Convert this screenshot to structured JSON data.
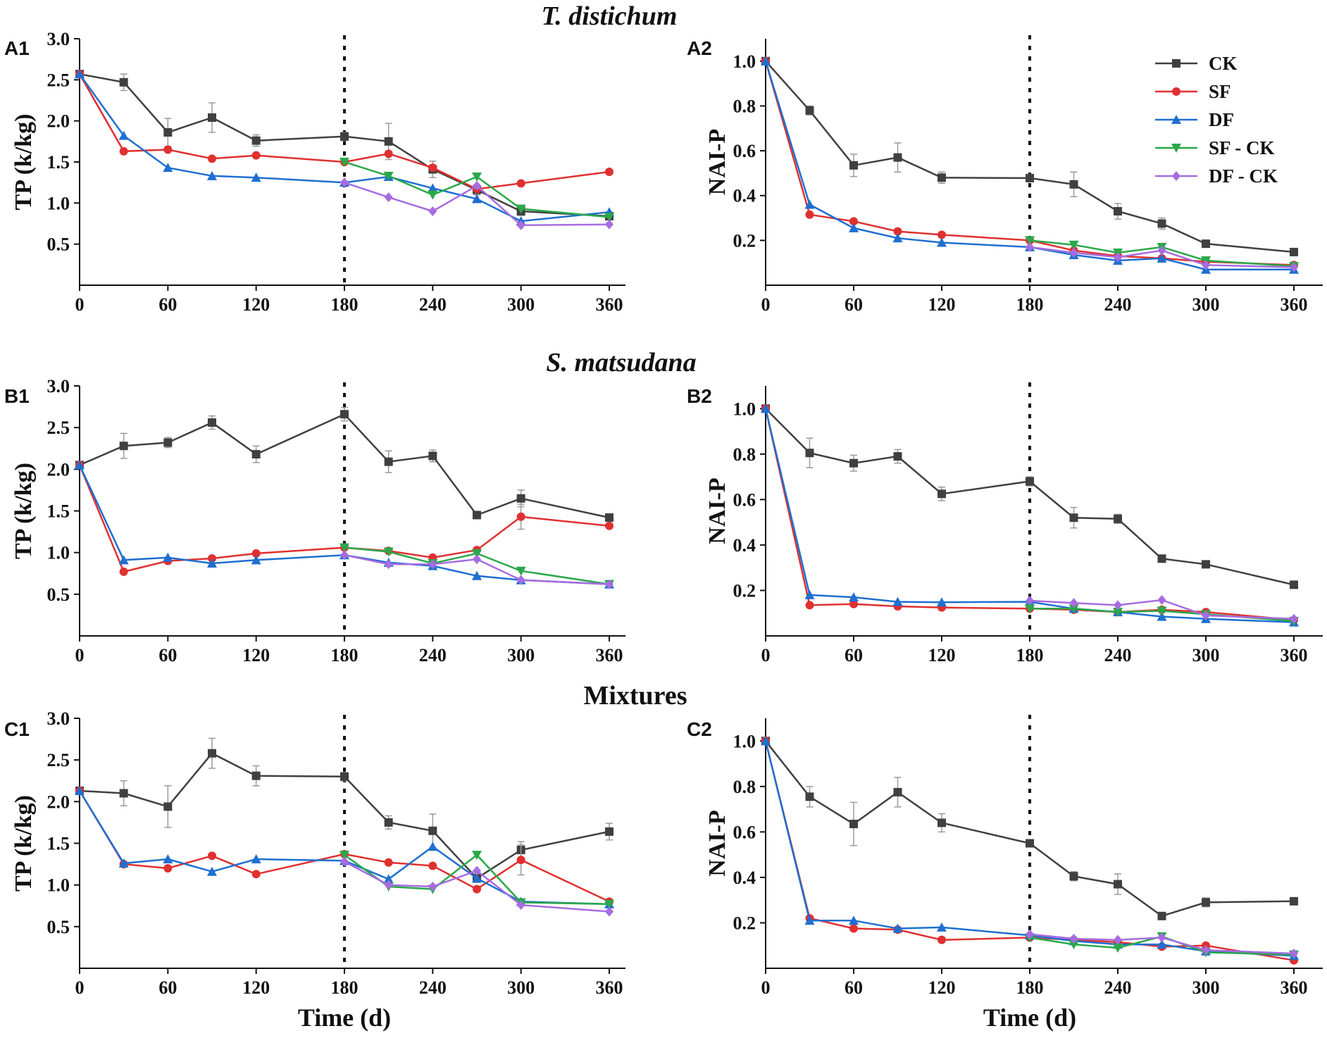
{
  "row_titles": [
    {
      "text": "T. distichum",
      "italic": true
    },
    {
      "text": "S. matsudana",
      "italic": true
    },
    {
      "text": "Mixtures",
      "italic": false
    }
  ],
  "x_axis_label": "Time (d)",
  "legend": [
    {
      "name": "CK",
      "color": "#404040",
      "marker": "square"
    },
    {
      "name": "SF",
      "color": "#e03030",
      "marker": "circle"
    },
    {
      "name": "DF",
      "color": "#1f6fd1",
      "marker": "triangle"
    },
    {
      "name": "SF - CK",
      "color": "#2aa84a",
      "marker": "triangle-down"
    },
    {
      "name": "DF - CK",
      "color": "#a66ce0",
      "marker": "diamond"
    }
  ],
  "chart_data": [
    {
      "id": "A1",
      "type": "line",
      "ylabel": "TP (k/kg)",
      "xlabel": "",
      "xlim": [
        0,
        360
      ],
      "xticks": [
        0,
        60,
        120,
        180,
        240,
        300,
        360
      ],
      "ylim": [
        0,
        3.0
      ],
      "yticks": [
        0.5,
        1.0,
        1.5,
        2.0,
        2.5,
        3.0
      ],
      "ytick_labels": [
        "0.5",
        "1.0",
        "1.5",
        "2.0",
        "2.5",
        "3.0"
      ],
      "vline_x": 180,
      "series": [
        {
          "name": "CK",
          "x": [
            0,
            30,
            60,
            90,
            120,
            180,
            210,
            240,
            270,
            300,
            360
          ],
          "values": [
            2.57,
            2.47,
            1.86,
            2.04,
            1.76,
            1.81,
            1.75,
            1.41,
            1.16,
            0.9,
            0.84
          ],
          "err": [
            0,
            0.1,
            0.17,
            0.18,
            0.07,
            0.05,
            0.22,
            0.1,
            0.06,
            0.05,
            0.04
          ]
        },
        {
          "name": "SF",
          "x": [
            0,
            30,
            60,
            90,
            120,
            180,
            210,
            240,
            270,
            300,
            360
          ],
          "values": [
            2.57,
            1.63,
            1.65,
            1.54,
            1.58,
            1.5,
            1.6,
            1.43,
            1.17,
            1.24,
            1.38
          ]
        },
        {
          "name": "DF",
          "x": [
            0,
            30,
            60,
            90,
            120,
            180,
            210,
            240,
            270,
            300,
            360
          ],
          "values": [
            2.57,
            1.82,
            1.43,
            1.33,
            1.31,
            1.25,
            1.32,
            1.18,
            1.05,
            0.78,
            0.89
          ]
        },
        {
          "name": "SF - CK",
          "x": [
            180,
            210,
            240,
            270,
            300,
            360
          ],
          "values": [
            1.5,
            1.33,
            1.1,
            1.32,
            0.93,
            0.83
          ]
        },
        {
          "name": "DF - CK",
          "x": [
            180,
            210,
            240,
            270,
            300,
            360
          ],
          "values": [
            1.25,
            1.07,
            0.9,
            1.21,
            0.73,
            0.74
          ]
        }
      ]
    },
    {
      "id": "A2",
      "type": "line",
      "ylabel": "NAI-P",
      "xlabel": "",
      "xlim": [
        0,
        360
      ],
      "xticks": [
        0,
        60,
        120,
        180,
        240,
        300,
        360
      ],
      "ylim": [
        0,
        1.1
      ],
      "yticks": [
        0.2,
        0.4,
        0.6,
        0.8,
        1.0
      ],
      "ytick_labels": [
        "0.2",
        "0.4",
        "0.6",
        "0.8",
        "1.0"
      ],
      "vline_x": 180,
      "legend": "top-right",
      "series": [
        {
          "name": "CK",
          "x": [
            0,
            30,
            60,
            90,
            120,
            180,
            210,
            240,
            270,
            300,
            360
          ],
          "values": [
            1.0,
            0.78,
            0.535,
            0.57,
            0.48,
            0.478,
            0.45,
            0.33,
            0.275,
            0.185,
            0.148
          ],
          "err": [
            0,
            0.02,
            0.05,
            0.065,
            0.025,
            0.01,
            0.055,
            0.035,
            0.025,
            0.01,
            0.008
          ]
        },
        {
          "name": "SF",
          "x": [
            0,
            30,
            60,
            90,
            120,
            180,
            210,
            240,
            270,
            300,
            360
          ],
          "values": [
            1.0,
            0.315,
            0.285,
            0.24,
            0.225,
            0.2,
            0.155,
            0.13,
            0.12,
            0.105,
            0.09
          ]
        },
        {
          "name": "DF",
          "x": [
            0,
            30,
            60,
            90,
            120,
            180,
            210,
            240,
            270,
            300,
            360
          ],
          "values": [
            1.0,
            0.36,
            0.255,
            0.21,
            0.19,
            0.17,
            0.135,
            0.11,
            0.12,
            0.07,
            0.07
          ]
        },
        {
          "name": "SF - CK",
          "x": [
            180,
            210,
            240,
            270,
            300,
            360
          ],
          "values": [
            0.2,
            0.18,
            0.145,
            0.17,
            0.11,
            0.085
          ]
        },
        {
          "name": "DF - CK",
          "x": [
            180,
            210,
            240,
            270,
            300,
            360
          ],
          "values": [
            0.17,
            0.145,
            0.125,
            0.155,
            0.09,
            0.08
          ]
        }
      ]
    },
    {
      "id": "B1",
      "type": "line",
      "ylabel": "TP (k/kg)",
      "xlabel": "",
      "xlim": [
        0,
        360
      ],
      "xticks": [
        0,
        60,
        120,
        180,
        240,
        300,
        360
      ],
      "ylim": [
        0,
        3.0
      ],
      "yticks": [
        0.5,
        1.0,
        1.5,
        2.0,
        2.5,
        3.0
      ],
      "ytick_labels": [
        "0.5",
        "1.0",
        "1.5",
        "2.0",
        "2.5",
        "3.0"
      ],
      "vline_x": 180,
      "series": [
        {
          "name": "CK",
          "x": [
            0,
            30,
            60,
            90,
            120,
            180,
            210,
            240,
            270,
            300,
            360
          ],
          "values": [
            2.05,
            2.28,
            2.32,
            2.56,
            2.18,
            2.66,
            2.09,
            2.16,
            1.45,
            1.65,
            1.42
          ],
          "err": [
            0,
            0.15,
            0.06,
            0.08,
            0.1,
            0.08,
            0.13,
            0.07,
            0.03,
            0.1,
            0.04
          ]
        },
        {
          "name": "SF",
          "x": [
            0,
            30,
            60,
            90,
            120,
            180,
            210,
            240,
            270,
            300,
            360
          ],
          "values": [
            2.05,
            0.77,
            0.9,
            0.93,
            0.99,
            1.06,
            1.02,
            0.94,
            1.03,
            1.43,
            1.32
          ],
          "err": [
            0,
            0,
            0,
            0,
            0,
            0,
            0,
            0,
            0,
            0.15,
            0
          ]
        },
        {
          "name": "DF",
          "x": [
            0,
            30,
            60,
            90,
            120,
            180,
            210,
            240,
            270,
            300,
            360
          ],
          "values": [
            2.05,
            0.91,
            0.94,
            0.87,
            0.91,
            0.97,
            0.88,
            0.84,
            0.72,
            0.67,
            0.62
          ]
        },
        {
          "name": "SF - CK",
          "x": [
            180,
            210,
            240,
            270,
            300,
            360
          ],
          "values": [
            1.06,
            1.01,
            0.87,
            0.99,
            0.78,
            0.62
          ]
        },
        {
          "name": "DF - CK",
          "x": [
            180,
            210,
            240,
            270,
            300,
            360
          ],
          "values": [
            0.97,
            0.86,
            0.86,
            0.92,
            0.67,
            0.62
          ]
        }
      ]
    },
    {
      "id": "B2",
      "type": "line",
      "ylabel": "NAI-P",
      "xlabel": "",
      "xlim": [
        0,
        360
      ],
      "xticks": [
        0,
        60,
        120,
        180,
        240,
        300,
        360
      ],
      "ylim": [
        0,
        1.1
      ],
      "yticks": [
        0.2,
        0.4,
        0.6,
        0.8,
        1.0
      ],
      "ytick_labels": [
        "0.2",
        "0.4",
        "0.6",
        "0.8",
        "1.0"
      ],
      "vline_x": 180,
      "series": [
        {
          "name": "CK",
          "x": [
            0,
            30,
            60,
            90,
            120,
            180,
            210,
            240,
            270,
            300,
            360
          ],
          "values": [
            1.0,
            0.805,
            0.76,
            0.79,
            0.625,
            0.68,
            0.52,
            0.515,
            0.34,
            0.315,
            0.225
          ],
          "err": [
            0,
            0.065,
            0.035,
            0.03,
            0.03,
            0.02,
            0.045,
            0.02,
            0.01,
            0.015,
            0.01
          ]
        },
        {
          "name": "SF",
          "x": [
            0,
            30,
            60,
            90,
            120,
            180,
            210,
            240,
            270,
            300,
            360
          ],
          "values": [
            1.0,
            0.135,
            0.14,
            0.13,
            0.125,
            0.12,
            0.115,
            0.105,
            0.115,
            0.105,
            0.07
          ]
        },
        {
          "name": "DF",
          "x": [
            0,
            30,
            60,
            90,
            120,
            180,
            210,
            240,
            270,
            300,
            360
          ],
          "values": [
            1.0,
            0.18,
            0.17,
            0.15,
            0.148,
            0.15,
            0.12,
            0.105,
            0.085,
            0.075,
            0.06
          ]
        },
        {
          "name": "SF - CK",
          "x": [
            180,
            210,
            240,
            270,
            300,
            360
          ],
          "values": [
            0.12,
            0.12,
            0.105,
            0.11,
            0.095,
            0.065
          ]
        },
        {
          "name": "DF - CK",
          "x": [
            180,
            210,
            240,
            270,
            300,
            360
          ],
          "values": [
            0.155,
            0.145,
            0.135,
            0.158,
            0.09,
            0.075
          ]
        }
      ]
    },
    {
      "id": "C1",
      "type": "line",
      "ylabel": "TP (k/kg)",
      "xlabel": "Time (d)",
      "xlim": [
        0,
        360
      ],
      "xticks": [
        0,
        60,
        120,
        180,
        240,
        300,
        360
      ],
      "ylim": [
        0,
        3.0
      ],
      "yticks": [
        0.5,
        1.0,
        1.5,
        2.0,
        2.5,
        3.0
      ],
      "ytick_labels": [
        "0.5",
        "1.0",
        "1.5",
        "2.0",
        "2.5",
        "3.0"
      ],
      "vline_x": 180,
      "series": [
        {
          "name": "CK",
          "x": [
            0,
            30,
            60,
            90,
            120,
            180,
            210,
            240,
            270,
            300,
            360
          ],
          "values": [
            2.13,
            2.1,
            1.94,
            2.58,
            2.31,
            2.3,
            1.75,
            1.65,
            1.08,
            1.42,
            1.64
          ],
          "err": [
            0,
            0.15,
            0.25,
            0.18,
            0.12,
            0.05,
            0.08,
            0.2,
            0.05,
            0.1,
            0.1
          ]
        },
        {
          "name": "SF",
          "x": [
            0,
            30,
            60,
            90,
            120,
            180,
            210,
            240,
            270,
            300,
            360
          ],
          "values": [
            2.13,
            1.25,
            1.2,
            1.35,
            1.13,
            1.37,
            1.27,
            1.23,
            0.95,
            1.3,
            0.8
          ],
          "err": [
            0,
            0,
            0,
            0,
            0,
            0,
            0,
            0,
            0,
            0.18,
            0
          ]
        },
        {
          "name": "DF",
          "x": [
            0,
            30,
            60,
            90,
            120,
            180,
            210,
            240,
            270,
            300,
            360
          ],
          "values": [
            2.13,
            1.26,
            1.31,
            1.16,
            1.31,
            1.29,
            1.07,
            1.46,
            1.08,
            0.8,
            0.77
          ]
        },
        {
          "name": "SF - CK",
          "x": [
            180,
            210,
            240,
            270,
            300,
            360
          ],
          "values": [
            1.36,
            0.98,
            0.95,
            1.36,
            0.79,
            0.77
          ]
        },
        {
          "name": "DF - CK",
          "x": [
            180,
            210,
            240,
            270,
            300,
            360
          ],
          "values": [
            1.28,
            1.0,
            0.98,
            1.17,
            0.76,
            0.68
          ]
        }
      ]
    },
    {
      "id": "C2",
      "type": "line",
      "ylabel": "NAI-P",
      "xlabel": "Time (d)",
      "xlim": [
        0,
        360
      ],
      "xticks": [
        0,
        60,
        120,
        180,
        240,
        300,
        360
      ],
      "ylim": [
        0,
        1.1
      ],
      "yticks": [
        0.2,
        0.4,
        0.6,
        0.8,
        1.0
      ],
      "ytick_labels": [
        "0.2",
        "0.4",
        "0.6",
        "0.8",
        "1.0"
      ],
      "vline_x": 180,
      "series": [
        {
          "name": "CK",
          "x": [
            0,
            30,
            60,
            90,
            120,
            180,
            210,
            240,
            270,
            300,
            360
          ],
          "values": [
            1.0,
            0.755,
            0.635,
            0.775,
            0.64,
            0.55,
            0.405,
            0.37,
            0.23,
            0.29,
            0.295
          ],
          "err": [
            0,
            0.045,
            0.095,
            0.065,
            0.04,
            0.015,
            0.02,
            0.045,
            0.01,
            0.02,
            0.015
          ]
        },
        {
          "name": "SF",
          "x": [
            0,
            30,
            60,
            90,
            120,
            180,
            210,
            240,
            270,
            300,
            360
          ],
          "values": [
            1.0,
            0.22,
            0.175,
            0.17,
            0.125,
            0.135,
            0.125,
            0.115,
            0.095,
            0.1,
            0.035
          ]
        },
        {
          "name": "DF",
          "x": [
            0,
            30,
            60,
            90,
            120,
            180,
            210,
            240,
            270,
            300,
            360
          ],
          "values": [
            1.0,
            0.21,
            0.21,
            0.175,
            0.18,
            0.145,
            0.12,
            0.105,
            0.105,
            0.075,
            0.055
          ]
        },
        {
          "name": "SF - CK",
          "x": [
            180,
            210,
            240,
            270,
            300,
            360
          ],
          "values": [
            0.135,
            0.105,
            0.09,
            0.14,
            0.07,
            0.06
          ]
        },
        {
          "name": "DF - CK",
          "x": [
            180,
            210,
            240,
            270,
            300,
            360
          ],
          "values": [
            0.15,
            0.13,
            0.125,
            0.135,
            0.08,
            0.065
          ]
        }
      ]
    }
  ]
}
